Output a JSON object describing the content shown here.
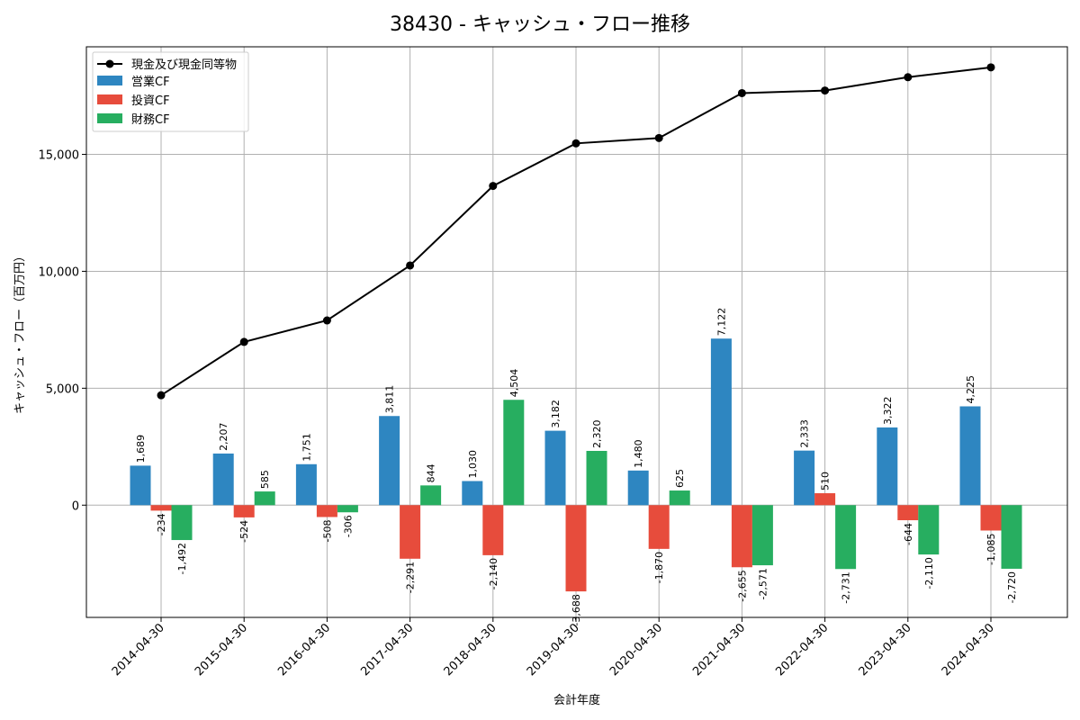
{
  "chart_data": {
    "type": "bar",
    "title": "38430 - キャッシュ・フロー推移",
    "xlabel": "会計年度",
    "ylabel": "キャッシュ・フロー（百万円）",
    "ylim": [
      -4800,
      19600
    ],
    "yticks": [
      0,
      5000,
      10000,
      15000
    ],
    "ytick_labels": [
      "0",
      "5,000",
      "10,000",
      "15,000"
    ],
    "grid": true,
    "legend_position": "top-left",
    "categories": [
      "2014-04-30",
      "2015-04-30",
      "2016-04-30",
      "2017-04-30",
      "2018-04-30",
      "2019-04-30",
      "2020-04-30",
      "2021-04-30",
      "2022-04-30",
      "2023-04-30",
      "2024-04-30"
    ],
    "series": [
      {
        "name": "営業CF",
        "kind": "bar",
        "color": "#2e86c1",
        "values": [
          1689,
          2207,
          1751,
          3811,
          1030,
          3182,
          1480,
          7122,
          2333,
          3322,
          4225
        ],
        "labels": [
          "1,689",
          "2,207",
          "1,751",
          "3,811",
          "1,030",
          "3,182",
          "1,480",
          "7,122",
          "2,333",
          "3,322",
          "4,225"
        ]
      },
      {
        "name": "投資CF",
        "kind": "bar",
        "color": "#e74c3c",
        "values": [
          -234,
          -524,
          -508,
          -2291,
          -2140,
          -3688,
          -1870,
          -2655,
          510,
          -644,
          -1085
        ],
        "labels": [
          "-234",
          "-524",
          "-508",
          "-2,291",
          "-2,140",
          "-3,688",
          "-1,870",
          "-2,655",
          "510",
          "-644",
          "-1,085"
        ]
      },
      {
        "name": "財務CF",
        "kind": "bar",
        "color": "#27ae60",
        "values": [
          -1492,
          585,
          -306,
          844,
          4504,
          2320,
          625,
          -2571,
          -2731,
          -2110,
          -2720
        ],
        "labels": [
          "-1,492",
          "585",
          "-306",
          "844",
          "4,504",
          "2,320",
          "625",
          "-2,571",
          "-2,731",
          "-2,110",
          "-2,720"
        ]
      },
      {
        "name": "現金及び現金同等物",
        "kind": "line",
        "color": "#000000",
        "values": [
          4700,
          6980,
          7900,
          10250,
          13650,
          15470,
          15700,
          17620,
          17730,
          18300,
          18720
        ]
      }
    ]
  }
}
